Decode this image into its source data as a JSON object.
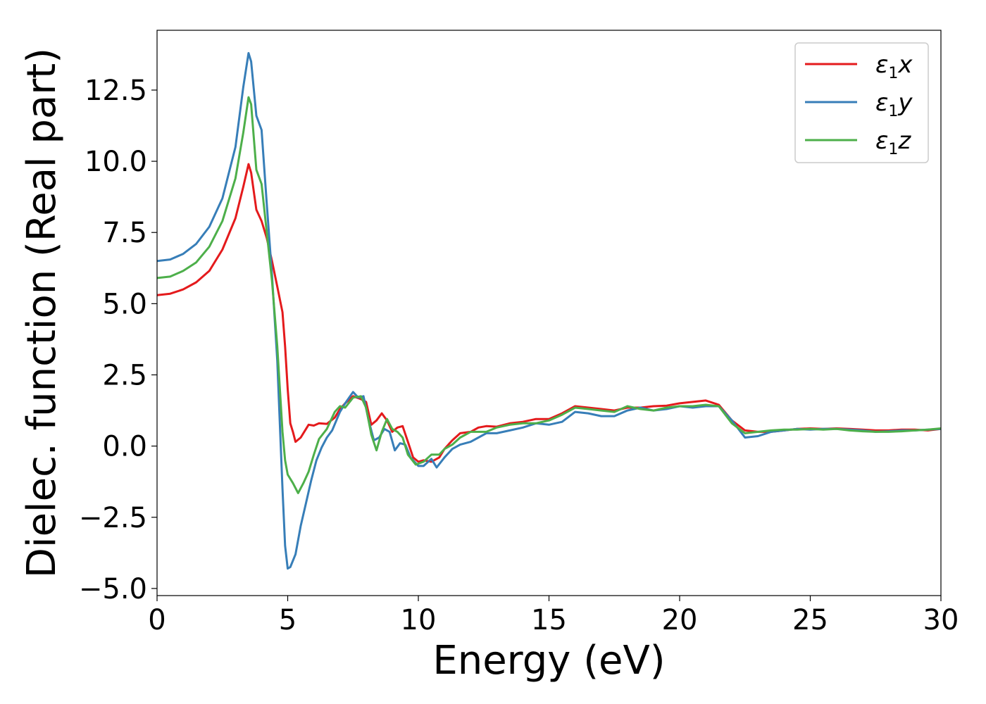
{
  "chart_data": {
    "type": "line",
    "xlabel": "Energy (eV)",
    "ylabel": "Dielec. function (Real part)",
    "xlim": [
      0,
      30
    ],
    "ylim": [
      -5.25,
      14.6
    ],
    "xticks": [
      0,
      5,
      10,
      15,
      20,
      25,
      30
    ],
    "xtick_labels": [
      "0",
      "5",
      "10",
      "15",
      "20",
      "25",
      "30"
    ],
    "yticks": [
      -5.0,
      -2.5,
      0.0,
      2.5,
      5.0,
      7.5,
      10.0,
      12.5
    ],
    "ytick_labels": [
      "−5.0",
      "−2.5",
      "0.0",
      "2.5",
      "5.0",
      "7.5",
      "10.0",
      "12.5"
    ],
    "grid": false,
    "legend_position": "top-right",
    "series": [
      {
        "name": "ε₁x",
        "legend_main": "ε",
        "legend_sub": "1",
        "legend_suffix": "x",
        "color": "#e41a1c",
        "points": [
          [
            0,
            5.3
          ],
          [
            0.5,
            5.35
          ],
          [
            1,
            5.5
          ],
          [
            1.5,
            5.75
          ],
          [
            2,
            6.15
          ],
          [
            2.5,
            6.9
          ],
          [
            3,
            8.0
          ],
          [
            3.3,
            9.1
          ],
          [
            3.5,
            9.9
          ],
          [
            3.6,
            9.6
          ],
          [
            3.8,
            8.3
          ],
          [
            4,
            7.9
          ],
          [
            4.2,
            7.3
          ],
          [
            4.4,
            6.5
          ],
          [
            4.6,
            5.6
          ],
          [
            4.8,
            4.7
          ],
          [
            4.9,
            3.5
          ],
          [
            5,
            2.0
          ],
          [
            5.1,
            0.8
          ],
          [
            5.2,
            0.5
          ],
          [
            5.3,
            0.15
          ],
          [
            5.5,
            0.3
          ],
          [
            5.7,
            0.6
          ],
          [
            5.8,
            0.75
          ],
          [
            6,
            0.72
          ],
          [
            6.2,
            0.8
          ],
          [
            6.5,
            0.78
          ],
          [
            6.8,
            1.0
          ],
          [
            7,
            1.3
          ],
          [
            7.2,
            1.5
          ],
          [
            7.5,
            1.75
          ],
          [
            7.8,
            1.65
          ],
          [
            8,
            1.55
          ],
          [
            8.2,
            0.75
          ],
          [
            8.4,
            0.9
          ],
          [
            8.6,
            1.15
          ],
          [
            8.8,
            0.9
          ],
          [
            9,
            0.5
          ],
          [
            9.2,
            0.65
          ],
          [
            9.4,
            0.7
          ],
          [
            9.6,
            0.15
          ],
          [
            9.8,
            -0.4
          ],
          [
            10,
            -0.55
          ],
          [
            10.2,
            -0.5
          ],
          [
            10.5,
            -0.55
          ],
          [
            10.8,
            -0.4
          ],
          [
            11,
            -0.1
          ],
          [
            11.3,
            0.2
          ],
          [
            11.6,
            0.45
          ],
          [
            12,
            0.5
          ],
          [
            12.3,
            0.65
          ],
          [
            12.6,
            0.7
          ],
          [
            13,
            0.68
          ],
          [
            13.5,
            0.8
          ],
          [
            14,
            0.85
          ],
          [
            14.5,
            0.95
          ],
          [
            15,
            0.95
          ],
          [
            15.5,
            1.15
          ],
          [
            16,
            1.4
          ],
          [
            16.5,
            1.35
          ],
          [
            17,
            1.3
          ],
          [
            17.5,
            1.25
          ],
          [
            18,
            1.35
          ],
          [
            18.5,
            1.35
          ],
          [
            19,
            1.4
          ],
          [
            19.5,
            1.42
          ],
          [
            20,
            1.5
          ],
          [
            20.5,
            1.55
          ],
          [
            21,
            1.6
          ],
          [
            21.5,
            1.45
          ],
          [
            22,
            0.9
          ],
          [
            22.5,
            0.55
          ],
          [
            23,
            0.5
          ],
          [
            23.5,
            0.5
          ],
          [
            24,
            0.55
          ],
          [
            24.5,
            0.6
          ],
          [
            25,
            0.62
          ],
          [
            25.5,
            0.6
          ],
          [
            26,
            0.62
          ],
          [
            26.5,
            0.6
          ],
          [
            27,
            0.58
          ],
          [
            27.5,
            0.55
          ],
          [
            28,
            0.55
          ],
          [
            28.5,
            0.58
          ],
          [
            29,
            0.58
          ],
          [
            29.5,
            0.55
          ],
          [
            30,
            0.6
          ]
        ]
      },
      {
        "name": "ε₁y",
        "legend_main": "ε",
        "legend_sub": "1",
        "legend_suffix": "y",
        "color": "#377eb8",
        "points": [
          [
            0,
            6.5
          ],
          [
            0.5,
            6.55
          ],
          [
            1,
            6.75
          ],
          [
            1.5,
            7.1
          ],
          [
            2,
            7.7
          ],
          [
            2.5,
            8.7
          ],
          [
            3,
            10.5
          ],
          [
            3.3,
            12.6
          ],
          [
            3.5,
            13.8
          ],
          [
            3.6,
            13.5
          ],
          [
            3.8,
            11.6
          ],
          [
            4,
            11.1
          ],
          [
            4.2,
            8.5
          ],
          [
            4.4,
            6.0
          ],
          [
            4.6,
            3.0
          ],
          [
            4.8,
            -1.5
          ],
          [
            4.9,
            -3.5
          ],
          [
            5,
            -4.3
          ],
          [
            5.1,
            -4.25
          ],
          [
            5.3,
            -3.8
          ],
          [
            5.5,
            -2.8
          ],
          [
            5.7,
            -2.0
          ],
          [
            5.9,
            -1.2
          ],
          [
            6.1,
            -0.5
          ],
          [
            6.3,
            -0.05
          ],
          [
            6.5,
            0.3
          ],
          [
            6.7,
            0.55
          ],
          [
            7,
            1.2
          ],
          [
            7.2,
            1.5
          ],
          [
            7.5,
            1.9
          ],
          [
            7.7,
            1.7
          ],
          [
            7.9,
            1.75
          ],
          [
            8.1,
            0.9
          ],
          [
            8.3,
            0.2
          ],
          [
            8.5,
            0.3
          ],
          [
            8.7,
            0.6
          ],
          [
            8.9,
            0.5
          ],
          [
            9.1,
            -0.15
          ],
          [
            9.3,
            0.1
          ],
          [
            9.5,
            0.05
          ],
          [
            9.7,
            -0.4
          ],
          [
            10,
            -0.7
          ],
          [
            10.2,
            -0.7
          ],
          [
            10.5,
            -0.45
          ],
          [
            10.7,
            -0.75
          ],
          [
            11,
            -0.4
          ],
          [
            11.3,
            -0.1
          ],
          [
            11.6,
            0.05
          ],
          [
            12,
            0.15
          ],
          [
            12.3,
            0.3
          ],
          [
            12.6,
            0.45
          ],
          [
            13,
            0.45
          ],
          [
            13.5,
            0.55
          ],
          [
            14,
            0.65
          ],
          [
            14.5,
            0.8
          ],
          [
            15,
            0.75
          ],
          [
            15.5,
            0.85
          ],
          [
            16,
            1.2
          ],
          [
            16.5,
            1.15
          ],
          [
            17,
            1.05
          ],
          [
            17.5,
            1.05
          ],
          [
            18,
            1.25
          ],
          [
            18.5,
            1.35
          ],
          [
            19,
            1.25
          ],
          [
            19.5,
            1.3
          ],
          [
            20,
            1.4
          ],
          [
            20.5,
            1.35
          ],
          [
            21,
            1.4
          ],
          [
            21.5,
            1.4
          ],
          [
            22,
            0.9
          ],
          [
            22.5,
            0.3
          ],
          [
            23,
            0.35
          ],
          [
            23.5,
            0.5
          ],
          [
            24,
            0.55
          ],
          [
            24.5,
            0.6
          ],
          [
            25,
            0.58
          ],
          [
            25.5,
            0.6
          ],
          [
            26,
            0.6
          ],
          [
            26.5,
            0.58
          ],
          [
            27,
            0.55
          ],
          [
            27.5,
            0.5
          ],
          [
            28,
            0.52
          ],
          [
            28.5,
            0.55
          ],
          [
            29,
            0.55
          ],
          [
            29.5,
            0.58
          ],
          [
            30,
            0.6
          ]
        ]
      },
      {
        "name": "ε₁z",
        "legend_main": "ε",
        "legend_sub": "1",
        "legend_suffix": "z",
        "color": "#4daf4a",
        "points": [
          [
            0,
            5.9
          ],
          [
            0.5,
            5.95
          ],
          [
            1,
            6.15
          ],
          [
            1.5,
            6.45
          ],
          [
            2,
            7.0
          ],
          [
            2.5,
            7.9
          ],
          [
            3,
            9.4
          ],
          [
            3.3,
            11.0
          ],
          [
            3.5,
            12.25
          ],
          [
            3.6,
            12.0
          ],
          [
            3.8,
            9.7
          ],
          [
            4,
            9.2
          ],
          [
            4.2,
            7.5
          ],
          [
            4.4,
            5.8
          ],
          [
            4.6,
            3.5
          ],
          [
            4.8,
            0.5
          ],
          [
            4.9,
            -0.5
          ],
          [
            5,
            -1.0
          ],
          [
            5.2,
            -1.3
          ],
          [
            5.4,
            -1.65
          ],
          [
            5.6,
            -1.3
          ],
          [
            5.8,
            -0.9
          ],
          [
            6,
            -0.3
          ],
          [
            6.2,
            0.25
          ],
          [
            6.5,
            0.6
          ],
          [
            6.8,
            1.2
          ],
          [
            7,
            1.4
          ],
          [
            7.2,
            1.35
          ],
          [
            7.5,
            1.7
          ],
          [
            7.8,
            1.75
          ],
          [
            8,
            1.35
          ],
          [
            8.2,
            0.4
          ],
          [
            8.4,
            -0.15
          ],
          [
            8.6,
            0.5
          ],
          [
            8.8,
            0.95
          ],
          [
            9,
            0.6
          ],
          [
            9.2,
            0.5
          ],
          [
            9.4,
            0.3
          ],
          [
            9.6,
            -0.3
          ],
          [
            9.9,
            -0.65
          ],
          [
            10.2,
            -0.55
          ],
          [
            10.5,
            -0.3
          ],
          [
            10.8,
            -0.3
          ],
          [
            11,
            -0.1
          ],
          [
            11.3,
            0.05
          ],
          [
            11.6,
            0.3
          ],
          [
            12,
            0.5
          ],
          [
            12.3,
            0.5
          ],
          [
            12.6,
            0.5
          ],
          [
            13,
            0.65
          ],
          [
            13.5,
            0.75
          ],
          [
            14,
            0.8
          ],
          [
            14.5,
            0.8
          ],
          [
            15,
            0.9
          ],
          [
            15.5,
            1.1
          ],
          [
            16,
            1.35
          ],
          [
            16.5,
            1.3
          ],
          [
            17,
            1.25
          ],
          [
            17.5,
            1.2
          ],
          [
            18,
            1.4
          ],
          [
            18.5,
            1.3
          ],
          [
            19,
            1.25
          ],
          [
            19.5,
            1.35
          ],
          [
            20,
            1.4
          ],
          [
            20.5,
            1.4
          ],
          [
            21,
            1.45
          ],
          [
            21.5,
            1.4
          ],
          [
            22,
            0.8
          ],
          [
            22.5,
            0.45
          ],
          [
            23,
            0.5
          ],
          [
            23.5,
            0.55
          ],
          [
            24,
            0.58
          ],
          [
            24.5,
            0.58
          ],
          [
            25,
            0.6
          ],
          [
            25.5,
            0.58
          ],
          [
            26,
            0.6
          ],
          [
            26.5,
            0.55
          ],
          [
            27,
            0.52
          ],
          [
            27.5,
            0.5
          ],
          [
            28,
            0.5
          ],
          [
            28.5,
            0.52
          ],
          [
            29,
            0.55
          ],
          [
            29.5,
            0.58
          ],
          [
            30,
            0.62
          ]
        ]
      }
    ]
  }
}
